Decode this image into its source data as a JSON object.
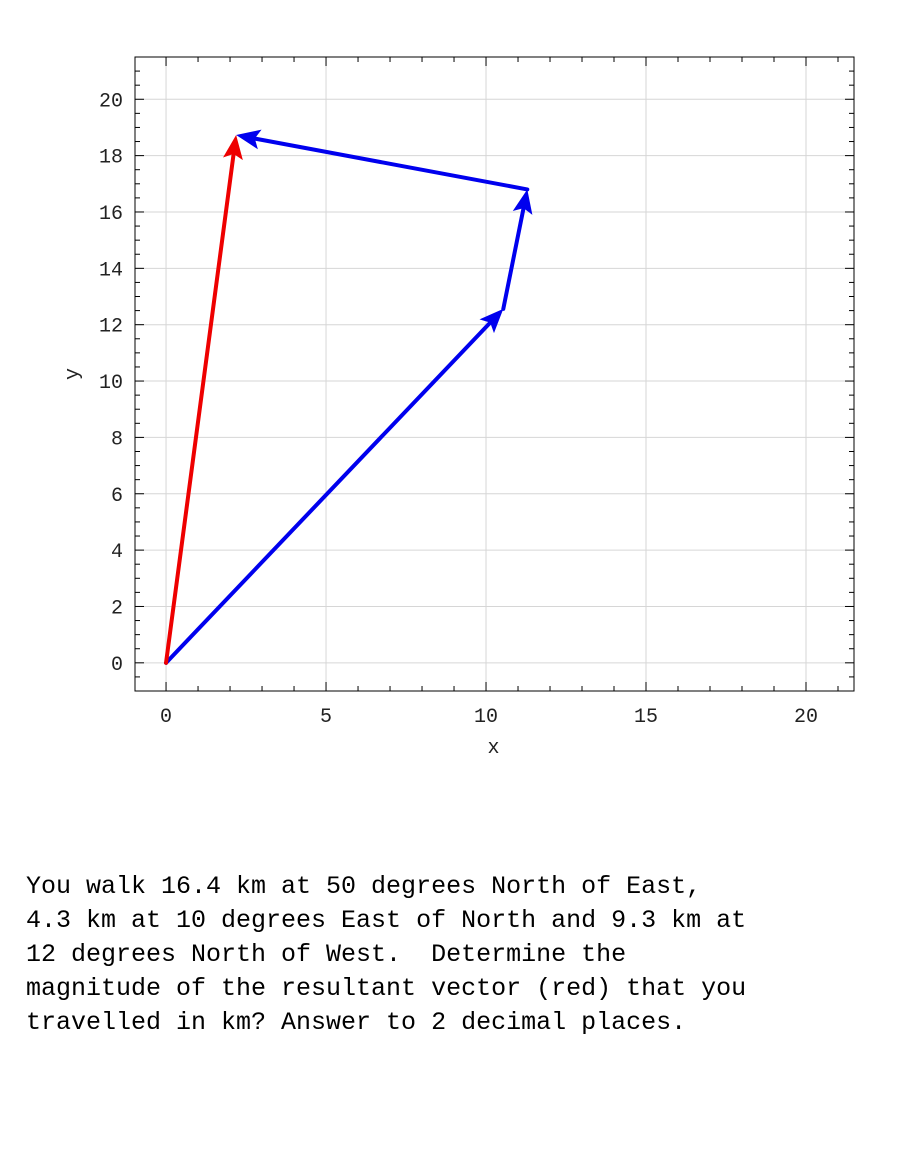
{
  "chart_data": {
    "type": "line",
    "xlabel": "x",
    "ylabel": "y",
    "xlim": [
      -0.97,
      21.5
    ],
    "ylim": [
      -1.0,
      21.5
    ],
    "xticks": [
      0,
      5,
      10,
      15,
      20
    ],
    "yticks": [
      0,
      2,
      4,
      6,
      8,
      10,
      12,
      14,
      16,
      18,
      20
    ],
    "grid": true,
    "series": [
      {
        "color": "#0000ee",
        "x": [
          0,
          10.54
        ],
        "y": [
          0,
          12.56
        ]
      },
      {
        "color": "#0000ee",
        "x": [
          10.54,
          11.29
        ],
        "y": [
          12.56,
          16.8
        ]
      },
      {
        "color": "#0000ee",
        "x": [
          11.29,
          2.19
        ],
        "y": [
          16.8,
          18.73
        ]
      },
      {
        "color": "#ee0000",
        "x": [
          0,
          2.19
        ],
        "y": [
          0,
          18.73
        ]
      }
    ]
  },
  "question": {
    "text": "You walk 16.4 km at 50 degrees North of East,\n4.3 km at 10 degrees East of North and 9.3 km at\n12 degrees North of West.  Determine the\nmagnitude of the resultant vector (red) that you\ntravelled in km? Answer to 2 decimal places."
  }
}
